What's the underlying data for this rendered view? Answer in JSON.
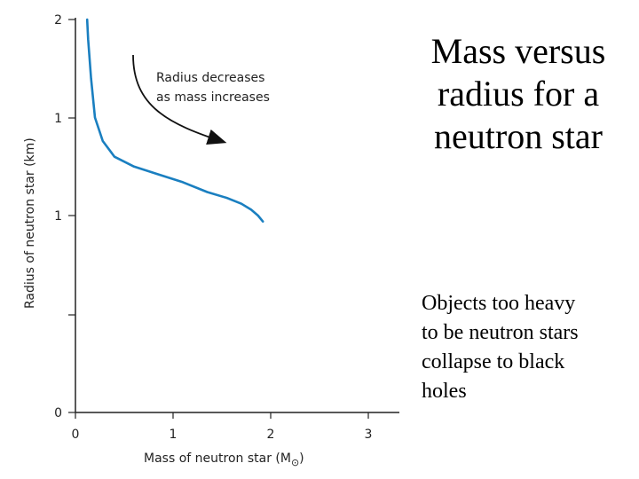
{
  "slide": {
    "title_lines": [
      "Mass versus",
      "radius for a",
      "neutron star"
    ],
    "body_lines": [
      "Objects too heavy",
      "to be neutron stars",
      "collapse to black",
      "holes"
    ]
  },
  "chart_data": {
    "type": "line",
    "title": "",
    "xlabel": "Mass of neutron star (M",
    "xlabel_symbol": "⊙",
    "xlabel_close": ")",
    "ylabel": "Radius of neutron star (km)",
    "x_ticks": [
      "0",
      "1",
      "2",
      "3"
    ],
    "y_ticks": [
      "0",
      "",
      "1",
      "1",
      "2"
    ],
    "xlim": [
      0,
      3.3
    ],
    "ylim": [
      0,
      2
    ],
    "grid": false,
    "series": [
      {
        "color": "#1a7fc0",
        "x": [
          0.12,
          0.13,
          0.16,
          0.2,
          0.28,
          0.4,
          0.6,
          0.85,
          1.1,
          1.35,
          1.55,
          1.7,
          1.8,
          1.87,
          1.92
        ],
        "y": [
          2.0,
          1.9,
          1.7,
          1.5,
          1.38,
          1.3,
          1.25,
          1.21,
          1.17,
          1.12,
          1.09,
          1.06,
          1.03,
          1.0,
          0.97
        ]
      }
    ],
    "annotation": {
      "lines": [
        "Radius decreases",
        "as mass increases"
      ],
      "arrow_color": "#111111"
    }
  }
}
